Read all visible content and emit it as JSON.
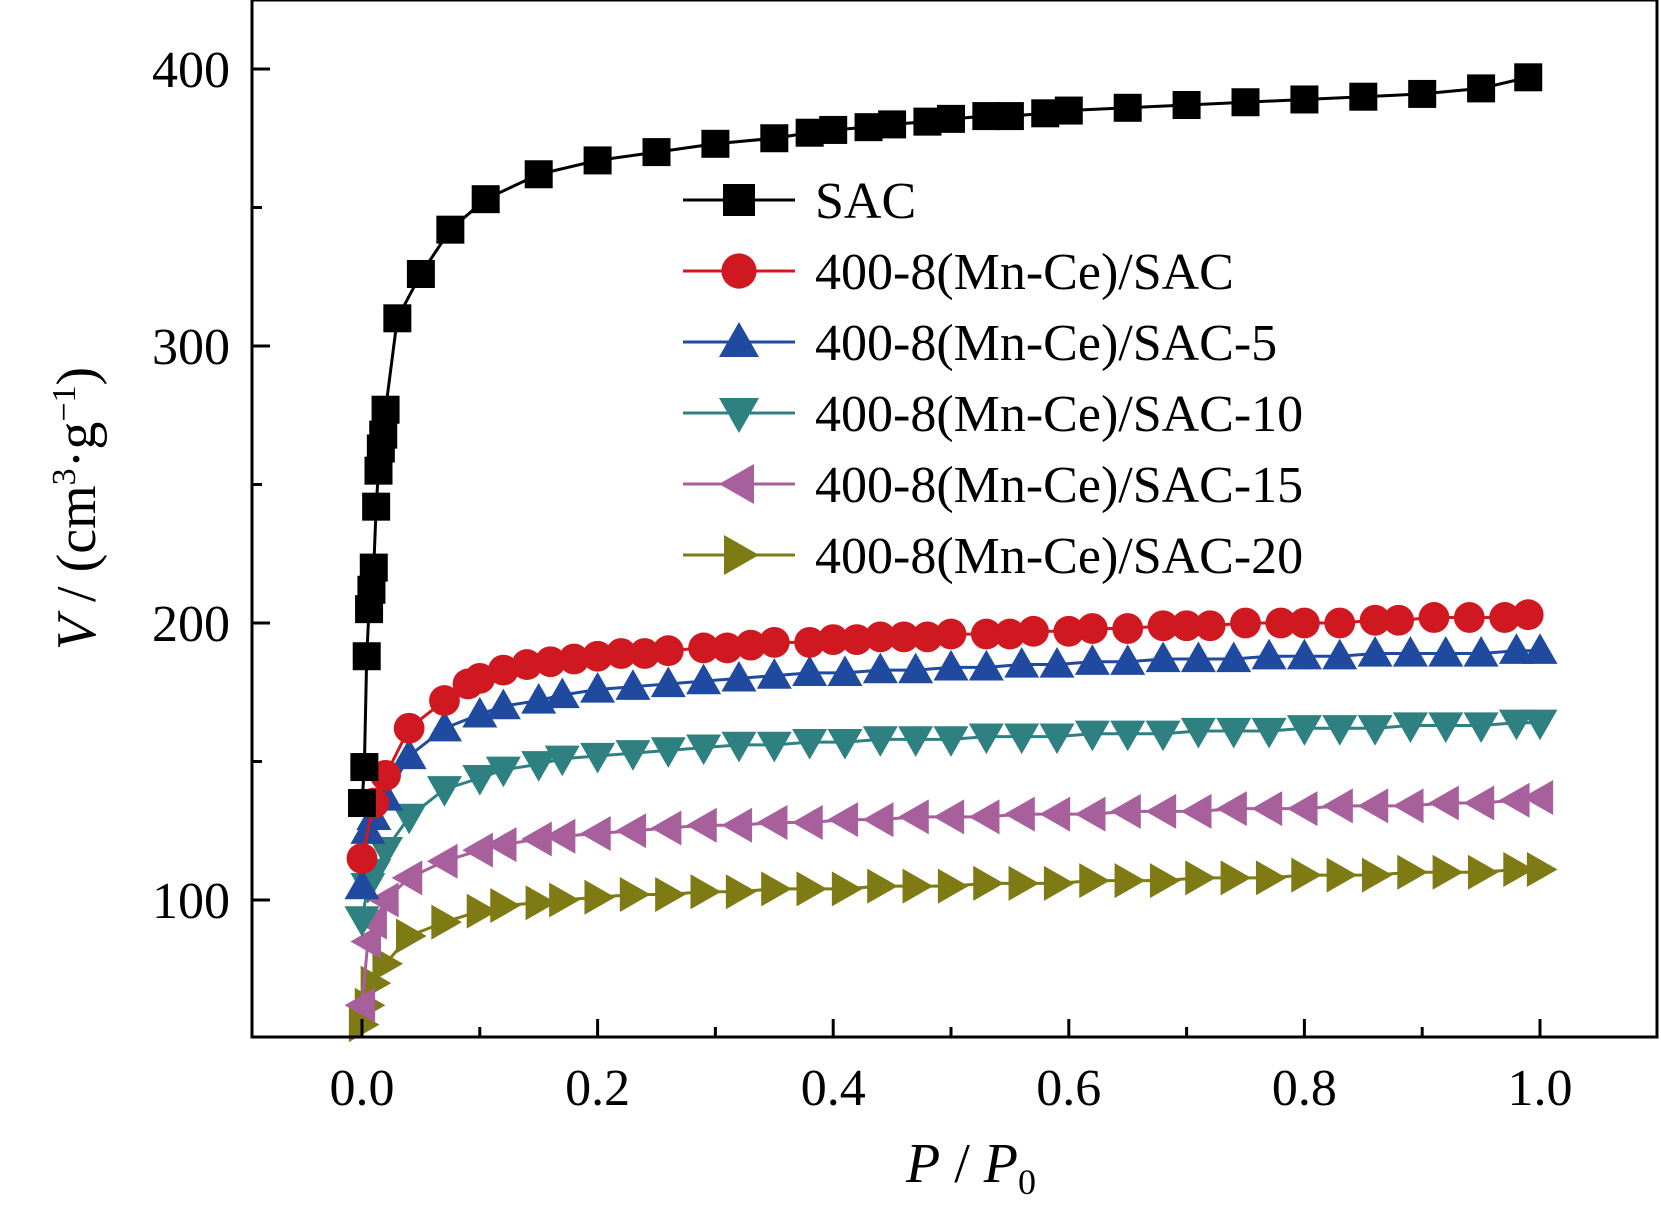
{
  "chart_data": {
    "type": "scatter",
    "title": "",
    "xlabel": {
      "italic": "P",
      "sep": " / ",
      "italic2": "P",
      "sub": "0"
    },
    "ylabel": {
      "italic": "V",
      "rest": " / (cm",
      "sup1": "3",
      "mid": "·g",
      "sup2": "−1",
      "end": ")"
    },
    "xlim": [
      -0.1,
      1.1
    ],
    "ylim": [
      50,
      425
    ],
    "xticks": [
      "0.0",
      "0.2",
      "0.4",
      "0.6",
      "0.8",
      "1.0"
    ],
    "xtick_values": [
      0.0,
      0.2,
      0.4,
      0.6,
      0.8,
      1.0
    ],
    "yticks": [
      "100",
      "200",
      "300",
      "400"
    ],
    "ytick_values": [
      100,
      200,
      300,
      400
    ],
    "legend_position": "upper-right",
    "series": [
      {
        "name": "SAC",
        "marker": "square",
        "color": "#000000",
        "x": [
          0.0,
          0.002,
          0.004,
          0.006,
          0.008,
          0.01,
          0.012,
          0.014,
          0.016,
          0.018,
          0.02,
          0.03,
          0.05,
          0.075,
          0.105,
          0.15,
          0.2,
          0.25,
          0.3,
          0.35,
          0.38,
          0.4,
          0.43,
          0.45,
          0.48,
          0.5,
          0.53,
          0.55,
          0.58,
          0.6,
          0.65,
          0.7,
          0.75,
          0.8,
          0.85,
          0.9,
          0.95,
          0.99
        ],
        "y": [
          135,
          148,
          188,
          205,
          212,
          220,
          242,
          255,
          263,
          268,
          277,
          310,
          326,
          342,
          353,
          362,
          367,
          370,
          373,
          375,
          377,
          378,
          379,
          380,
          381,
          382,
          383,
          383,
          384,
          385,
          386,
          387,
          388,
          389,
          390,
          391,
          393,
          397
        ]
      },
      {
        "name": "400-8(Mn-Ce)/SAC",
        "marker": "circle",
        "color": "#d01820",
        "x": [
          0.0,
          0.01,
          0.02,
          0.04,
          0.07,
          0.09,
          0.1,
          0.12,
          0.14,
          0.16,
          0.18,
          0.2,
          0.22,
          0.24,
          0.26,
          0.29,
          0.31,
          0.33,
          0.35,
          0.38,
          0.4,
          0.42,
          0.44,
          0.46,
          0.48,
          0.5,
          0.53,
          0.55,
          0.57,
          0.6,
          0.62,
          0.65,
          0.68,
          0.7,
          0.72,
          0.75,
          0.78,
          0.8,
          0.83,
          0.86,
          0.88,
          0.91,
          0.94,
          0.97,
          0.99
        ],
        "y": [
          115,
          135,
          145,
          162,
          172,
          178,
          180,
          183,
          185,
          186,
          187,
          188,
          189,
          189,
          190,
          191,
          191,
          192,
          193,
          193,
          194,
          194,
          195,
          195,
          195,
          196,
          196,
          196,
          197,
          197,
          198,
          198,
          199,
          199,
          199,
          200,
          200,
          200,
          200,
          201,
          201,
          202,
          202,
          202,
          203
        ]
      },
      {
        "name": "400-8(Mn-Ce)/SAC-5",
        "marker": "triangle-up",
        "color": "#1f4aa0",
        "x": [
          0.0,
          0.005,
          0.01,
          0.02,
          0.04,
          0.07,
          0.1,
          0.12,
          0.15,
          0.17,
          0.2,
          0.23,
          0.26,
          0.29,
          0.32,
          0.35,
          0.38,
          0.41,
          0.44,
          0.47,
          0.5,
          0.53,
          0.56,
          0.59,
          0.62,
          0.65,
          0.68,
          0.71,
          0.74,
          0.77,
          0.8,
          0.83,
          0.86,
          0.89,
          0.92,
          0.95,
          0.98,
          1.0
        ],
        "y": [
          105,
          125,
          130,
          137,
          152,
          162,
          167,
          170,
          172,
          174,
          176,
          177,
          178,
          179,
          180,
          181,
          182,
          182,
          183,
          183,
          184,
          184,
          185,
          185,
          186,
          186,
          187,
          187,
          187,
          188,
          188,
          188,
          189,
          189,
          189,
          189,
          190,
          190
        ]
      },
      {
        "name": "400-8(Mn-Ce)/SAC-10",
        "marker": "triangle-down",
        "color": "#2f8080",
        "x": [
          0.0,
          0.005,
          0.01,
          0.02,
          0.04,
          0.07,
          0.1,
          0.12,
          0.15,
          0.17,
          0.2,
          0.23,
          0.26,
          0.29,
          0.32,
          0.35,
          0.38,
          0.41,
          0.44,
          0.47,
          0.5,
          0.53,
          0.56,
          0.59,
          0.62,
          0.65,
          0.68,
          0.71,
          0.74,
          0.77,
          0.8,
          0.83,
          0.86,
          0.89,
          0.92,
          0.95,
          0.98,
          1.0
        ],
        "y": [
          93,
          105,
          110,
          118,
          130,
          140,
          144,
          147,
          149,
          151,
          152,
          153,
          154,
          155,
          156,
          156,
          157,
          157,
          158,
          158,
          158,
          159,
          159,
          159,
          160,
          160,
          160,
          161,
          161,
          161,
          162,
          162,
          162,
          163,
          163,
          163,
          164,
          164
        ]
      },
      {
        "name": "400-8(Mn-Ce)/SAC-15",
        "marker": "triangle-left",
        "color": "#a8609c",
        "x": [
          0.0,
          0.005,
          0.01,
          0.02,
          0.04,
          0.07,
          0.1,
          0.12,
          0.15,
          0.17,
          0.2,
          0.23,
          0.26,
          0.29,
          0.32,
          0.35,
          0.38,
          0.41,
          0.44,
          0.47,
          0.5,
          0.53,
          0.56,
          0.59,
          0.62,
          0.65,
          0.68,
          0.71,
          0.74,
          0.77,
          0.8,
          0.83,
          0.86,
          0.89,
          0.92,
          0.95,
          0.98,
          1.0
        ],
        "y": [
          62,
          85,
          92,
          100,
          108,
          114,
          118,
          120,
          122,
          123,
          124,
          125,
          126,
          127,
          127,
          128,
          128,
          129,
          129,
          130,
          130,
          130,
          131,
          131,
          131,
          132,
          132,
          132,
          133,
          133,
          133,
          134,
          134,
          134,
          135,
          135,
          136,
          137
        ]
      },
      {
        "name": "400-8(Mn-Ce)/SAC-20",
        "marker": "triangle-right",
        "color": "#7e7a14",
        "x": [
          0.0,
          0.005,
          0.01,
          0.02,
          0.04,
          0.07,
          0.1,
          0.12,
          0.15,
          0.17,
          0.2,
          0.23,
          0.26,
          0.29,
          0.32,
          0.35,
          0.38,
          0.41,
          0.44,
          0.47,
          0.5,
          0.53,
          0.56,
          0.59,
          0.62,
          0.65,
          0.68,
          0.71,
          0.74,
          0.77,
          0.8,
          0.83,
          0.86,
          0.89,
          0.92,
          0.95,
          0.98,
          1.0
        ],
        "y": [
          55,
          62,
          70,
          77,
          87,
          92,
          96,
          98,
          99,
          100,
          101,
          102,
          102,
          103,
          103,
          104,
          104,
          104,
          105,
          105,
          105,
          106,
          106,
          106,
          107,
          107,
          107,
          108,
          108,
          108,
          109,
          109,
          109,
          110,
          110,
          110,
          111,
          111
        ]
      }
    ]
  }
}
